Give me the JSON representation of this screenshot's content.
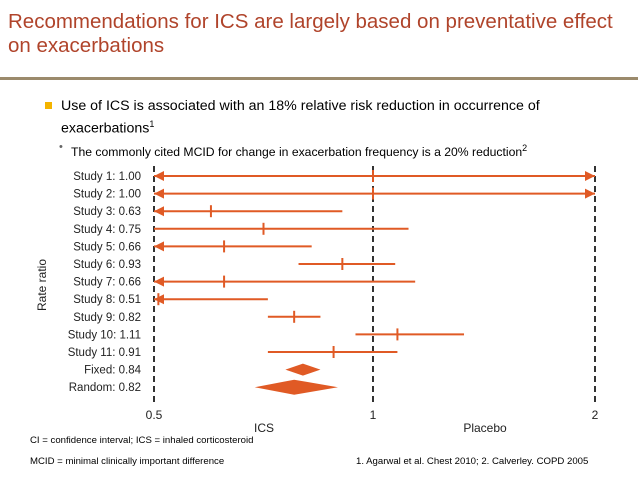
{
  "title": "Recommendations for ICS are largely based on preventative effect on exacerbations",
  "bullet1": {
    "text": "Use of ICS is associated with an 18% relative risk reduction in occurrence of exacerbations",
    "ref": "1"
  },
  "bullet2": {
    "text": "The commonly cited MCID for change in exacerbation frequency is a 20% reduction",
    "ref": "2"
  },
  "colors": {
    "accent": "#e05a25",
    "title": "#b0442b",
    "rule": "#9b8a6c",
    "bullet": "#f4b400"
  },
  "chart_data": {
    "type": "forest",
    "ylabel": "Rate ratio",
    "xlim": [
      0.5,
      2
    ],
    "x_ticks": [
      "0.5",
      "1",
      "2"
    ],
    "x_end_labels": {
      "left": "ICS",
      "right": "Placebo"
    },
    "reference_lines": [
      0.5,
      1,
      2
    ],
    "studies": [
      {
        "label": "Study 1: 1.00",
        "estimate": 1.0,
        "lower": 0.5,
        "upper": 2.0,
        "arrow_left": true,
        "arrow_right": true
      },
      {
        "label": "Study 2: 1.00",
        "estimate": 1.0,
        "lower": 0.5,
        "upper": 2.0,
        "arrow_left": true,
        "arrow_right": true
      },
      {
        "label": "Study 3: 0.63",
        "estimate": 0.63,
        "lower": 0.5,
        "upper": 0.93,
        "arrow_left": true,
        "arrow_right": false
      },
      {
        "label": "Study 4: 0.75",
        "estimate": 0.75,
        "lower": 0.5,
        "upper": 1.16,
        "arrow_left": false,
        "arrow_right": false
      },
      {
        "label": "Study 5: 0.66",
        "estimate": 0.66,
        "lower": 0.5,
        "upper": 0.86,
        "arrow_left": true,
        "arrow_right": false
      },
      {
        "label": "Study 6: 0.93",
        "estimate": 0.93,
        "lower": 0.83,
        "upper": 1.1,
        "arrow_left": false,
        "arrow_right": false
      },
      {
        "label": "Study 7: 0.66",
        "estimate": 0.66,
        "lower": 0.5,
        "upper": 1.19,
        "arrow_left": true,
        "arrow_right": false
      },
      {
        "label": "Study 8: 0.51",
        "estimate": 0.51,
        "lower": 0.5,
        "upper": 0.76,
        "arrow_left": true,
        "arrow_right": false
      },
      {
        "label": "Study 9: 0.82",
        "estimate": 0.82,
        "lower": 0.76,
        "upper": 0.88,
        "arrow_left": false,
        "arrow_right": false
      },
      {
        "label": "Study 10: 1.11",
        "estimate": 1.11,
        "lower": 0.96,
        "upper": 1.41,
        "arrow_left": false,
        "arrow_right": false
      },
      {
        "label": "Study 11: 0.91",
        "estimate": 0.91,
        "lower": 0.76,
        "upper": 1.11,
        "arrow_left": false,
        "arrow_right": false
      }
    ],
    "pooled": [
      {
        "label": "Fixed: 0.84",
        "estimate": 0.84,
        "lower": 0.8,
        "upper": 0.88
      },
      {
        "label": "Random: 0.82",
        "estimate": 0.82,
        "lower": 0.73,
        "upper": 0.92
      }
    ]
  },
  "footnote1": "CI = confidence interval; ICS = inhaled corticosteroid",
  "footnote2": "MCID = minimal clinically important difference",
  "references": "1. Agarwal et al. Chest 2010; 2. Calverley. COPD 2005"
}
